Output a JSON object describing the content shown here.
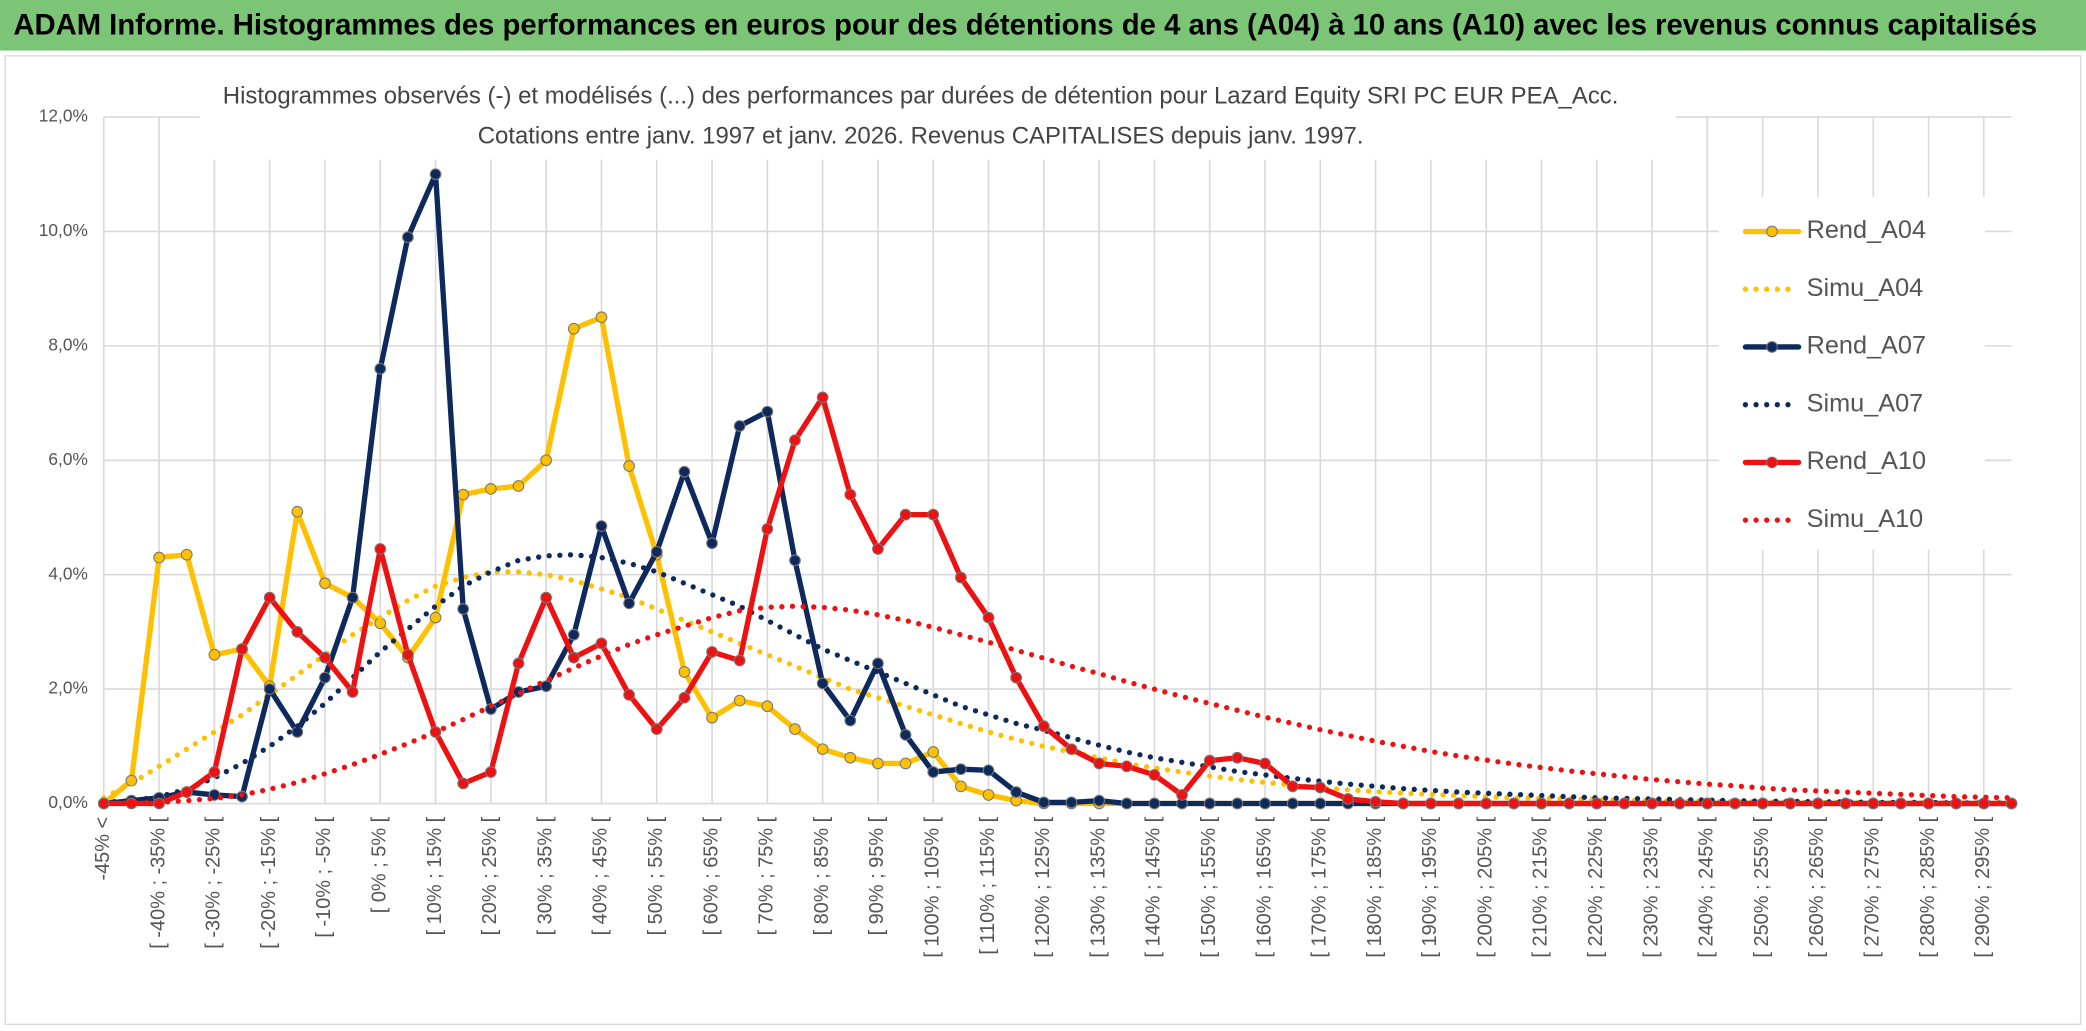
{
  "chart_data": {
    "type": "line",
    "header": "ADAM Informe. Histogrammes des performances en euros pour des détentions de 4 ans (A04) à 10 ans (A10) avec les revenus connus capitalisés",
    "title": "Histogrammes observés (-) et modélisés (...) des performances par durées de détention pour Lazard Equity SRI PC EUR PEA_Acc.",
    "subtitle": "Cotations entre janv. 1997 et janv. 2026. Revenus CAPITALISES depuis janv. 1997.",
    "categories": [
      "-45% <",
      null,
      "[ -40% ; -35% [",
      null,
      "[ -30% ; -25% [",
      null,
      "[ -20% ; -15% [",
      null,
      "[ -10% ; -5% [",
      null,
      "[ 0% ; 5% [",
      null,
      "[ 10% ; 15% [",
      null,
      "[ 20% ; 25% [",
      null,
      "[ 30% ; 35% [",
      null,
      "[ 40% ; 45% [",
      null,
      "[ 50% ; 55% [",
      null,
      "[ 60% ; 65% [",
      null,
      "[ 70% ; 75% [",
      null,
      "[ 80% ; 85% [",
      null,
      "[ 90% ; 95% [",
      null,
      "[ 100% ; 105% [",
      null,
      "[ 110% ; 115% [",
      null,
      "[ 120% ; 125% [",
      null,
      "[ 130% ; 135% [",
      null,
      "[ 140% ; 145% [",
      null,
      "[ 150% ; 155% [",
      null,
      "[ 160% ; 165% [",
      null,
      "[ 170% ; 175% [",
      null,
      "[ 180% ; 185% [",
      null,
      "[ 190% ; 195% [",
      null,
      "[ 200% ; 205% [",
      null,
      "[ 210% ; 215% [",
      null,
      "[ 220% ; 225% [",
      null,
      "[ 230% ; 235% [",
      null,
      "[ 240% ; 245% [",
      null,
      "[ 250% ; 255% [",
      null,
      "[ 260% ; 265% [",
      null,
      "[ 270% ; 275% [",
      null,
      "[ 280% ; 285% [",
      null,
      "[ 290% ; 295% [",
      null
    ],
    "series": [
      {
        "name": "Rend_A04",
        "color": "#ffc000",
        "style": "solid",
        "markers": true,
        "values": [
          0,
          0.4,
          4.3,
          4.35,
          2.6,
          2.7,
          2.05,
          5.1,
          3.85,
          3.6,
          3.15,
          2.55,
          3.25,
          5.4,
          5.5,
          5.55,
          6.0,
          8.3,
          8.5,
          5.9,
          4.35,
          2.3,
          1.5,
          1.8,
          1.7,
          1.3,
          0.95,
          0.8,
          0.7,
          0.7,
          0.9,
          0.3,
          0.15,
          0.05,
          0,
          0,
          0,
          0,
          0,
          0,
          0,
          0,
          0,
          0,
          0,
          0,
          0,
          0,
          0,
          0,
          0,
          0,
          0,
          0,
          0,
          0,
          0,
          0,
          0,
          0,
          0,
          0,
          0,
          0,
          0,
          0,
          0,
          0,
          0,
          0
        ]
      },
      {
        "name": "Simu_A04",
        "color": "#ffc000",
        "style": "dotted",
        "markers": false,
        "values": [
          0.1,
          0.35,
          0.65,
          0.95,
          1.25,
          1.55,
          1.9,
          2.25,
          2.6,
          2.95,
          3.25,
          3.55,
          3.8,
          3.95,
          4.05,
          4.05,
          4.0,
          3.9,
          3.75,
          3.6,
          3.4,
          3.2,
          3.0,
          2.8,
          2.6,
          2.4,
          2.2,
          2.0,
          1.85,
          1.7,
          1.55,
          1.4,
          1.25,
          1.12,
          1.0,
          0.9,
          0.8,
          0.7,
          0.62,
          0.55,
          0.48,
          0.42,
          0.37,
          0.32,
          0.28,
          0.24,
          0.21,
          0.18,
          0.16,
          0.14,
          0.12,
          0.1,
          0.09,
          0.08,
          0.07,
          0.06,
          0.05,
          0.04,
          0.04,
          0.03,
          0.03,
          0.02,
          0.02,
          0.02,
          0.01,
          0.01,
          0.01,
          0.01,
          0.01,
          0.01
        ]
      },
      {
        "name": "Rend_A07",
        "color": "#0e2a5c",
        "style": "solid",
        "markers": true,
        "values": [
          0,
          0.05,
          0.1,
          0.2,
          0.15,
          0.12,
          2.0,
          1.25,
          2.2,
          3.6,
          7.6,
          9.9,
          11.0,
          3.4,
          1.65,
          1.95,
          2.05,
          2.95,
          4.85,
          3.5,
          4.4,
          5.8,
          4.55,
          6.6,
          6.85,
          4.25,
          2.1,
          1.45,
          2.45,
          1.2,
          0.55,
          0.6,
          0.58,
          0.2,
          0.02,
          0.02,
          0.05,
          0,
          0,
          0,
          0,
          0,
          0,
          0,
          0,
          0,
          0,
          0,
          0,
          0,
          0,
          0,
          0,
          0,
          0,
          0,
          0,
          0,
          0,
          0,
          0,
          0,
          0,
          0,
          0,
          0,
          0,
          0,
          0,
          0
        ]
      },
      {
        "name": "Simu_A07",
        "color": "#0e2a5c",
        "style": "dotted",
        "markers": false,
        "values": [
          0.02,
          0.05,
          0.12,
          0.25,
          0.45,
          0.7,
          1.0,
          1.35,
          1.75,
          2.2,
          2.65,
          3.05,
          3.45,
          3.8,
          4.05,
          4.25,
          4.33,
          4.35,
          4.3,
          4.2,
          4.05,
          3.85,
          3.65,
          3.45,
          3.2,
          2.95,
          2.7,
          2.5,
          2.3,
          2.1,
          1.9,
          1.7,
          1.55,
          1.4,
          1.28,
          1.15,
          1.02,
          0.9,
          0.8,
          0.72,
          0.64,
          0.56,
          0.5,
          0.44,
          0.39,
          0.34,
          0.3,
          0.26,
          0.23,
          0.2,
          0.18,
          0.16,
          0.14,
          0.12,
          0.1,
          0.09,
          0.08,
          0.07,
          0.06,
          0.05,
          0.04,
          0.04,
          0.03,
          0.03,
          0.02,
          0.02,
          0.02,
          0.01,
          0.01,
          0.01
        ]
      },
      {
        "name": "Rend_A10",
        "color": "#ee1111",
        "style": "solid",
        "markers": true,
        "values": [
          0,
          0,
          0,
          0.2,
          0.55,
          2.7,
          3.6,
          3.0,
          2.55,
          1.95,
          4.45,
          2.6,
          1.25,
          0.35,
          0.55,
          2.45,
          3.6,
          2.55,
          2.8,
          1.9,
          1.3,
          1.85,
          2.65,
          2.5,
          4.8,
          6.35,
          7.1,
          5.4,
          4.45,
          5.05,
          5.05,
          3.95,
          3.25,
          2.2,
          1.35,
          0.95,
          0.7,
          0.65,
          0.5,
          0.15,
          0.75,
          0.8,
          0.7,
          0.3,
          0.28,
          0.08,
          0.03,
          0,
          0,
          0,
          0,
          0,
          0,
          0,
          0,
          0,
          0,
          0,
          0,
          0,
          0,
          0,
          0,
          0,
          0,
          0,
          0,
          0,
          0,
          0
        ]
      },
      {
        "name": "Simu_A10",
        "color": "#ee1111",
        "style": "dotted",
        "markers": false,
        "values": [
          0,
          0.01,
          0.02,
          0.05,
          0.09,
          0.15,
          0.25,
          0.37,
          0.52,
          0.68,
          0.86,
          1.05,
          1.25,
          1.47,
          1.7,
          1.92,
          2.15,
          2.37,
          2.58,
          2.78,
          2.95,
          3.1,
          3.25,
          3.37,
          3.43,
          3.45,
          3.43,
          3.38,
          3.3,
          3.2,
          3.08,
          2.95,
          2.82,
          2.68,
          2.54,
          2.4,
          2.27,
          2.13,
          2.0,
          1.87,
          1.75,
          1.63,
          1.51,
          1.4,
          1.29,
          1.19,
          1.09,
          1.0,
          0.91,
          0.83,
          0.76,
          0.69,
          0.63,
          0.57,
          0.52,
          0.47,
          0.42,
          0.38,
          0.34,
          0.31,
          0.27,
          0.24,
          0.22,
          0.2,
          0.18,
          0.16,
          0.14,
          0.12,
          0.11,
          0.1
        ]
      }
    ],
    "ylim": [
      0,
      12
    ],
    "yticks": [
      {
        "value": 0,
        "label": "0,0%"
      },
      {
        "value": 2,
        "label": "2,0%"
      },
      {
        "value": 4,
        "label": "4,0%"
      },
      {
        "value": 6,
        "label": "6,0%"
      },
      {
        "value": 8,
        "label": "8,0%"
      },
      {
        "value": 10,
        "label": "10,0%"
      },
      {
        "value": 12,
        "label": "12,0%"
      }
    ],
    "grid": true,
    "legend": "right",
    "header_color": "#7cc576"
  }
}
